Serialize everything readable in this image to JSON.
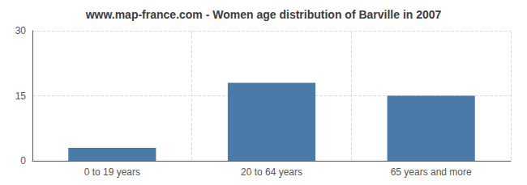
{
  "chart_data": {
    "type": "bar",
    "title": "www.map-france.com - Women age distribution of Barville in 2007",
    "categories": [
      "0 to 19 years",
      "20 to 64 years",
      "65 years and more"
    ],
    "values": [
      3,
      18,
      15
    ],
    "color": "#4a7aa7",
    "ylim": [
      0,
      30
    ],
    "yticks": [
      0,
      15,
      30
    ],
    "grid": true
  }
}
